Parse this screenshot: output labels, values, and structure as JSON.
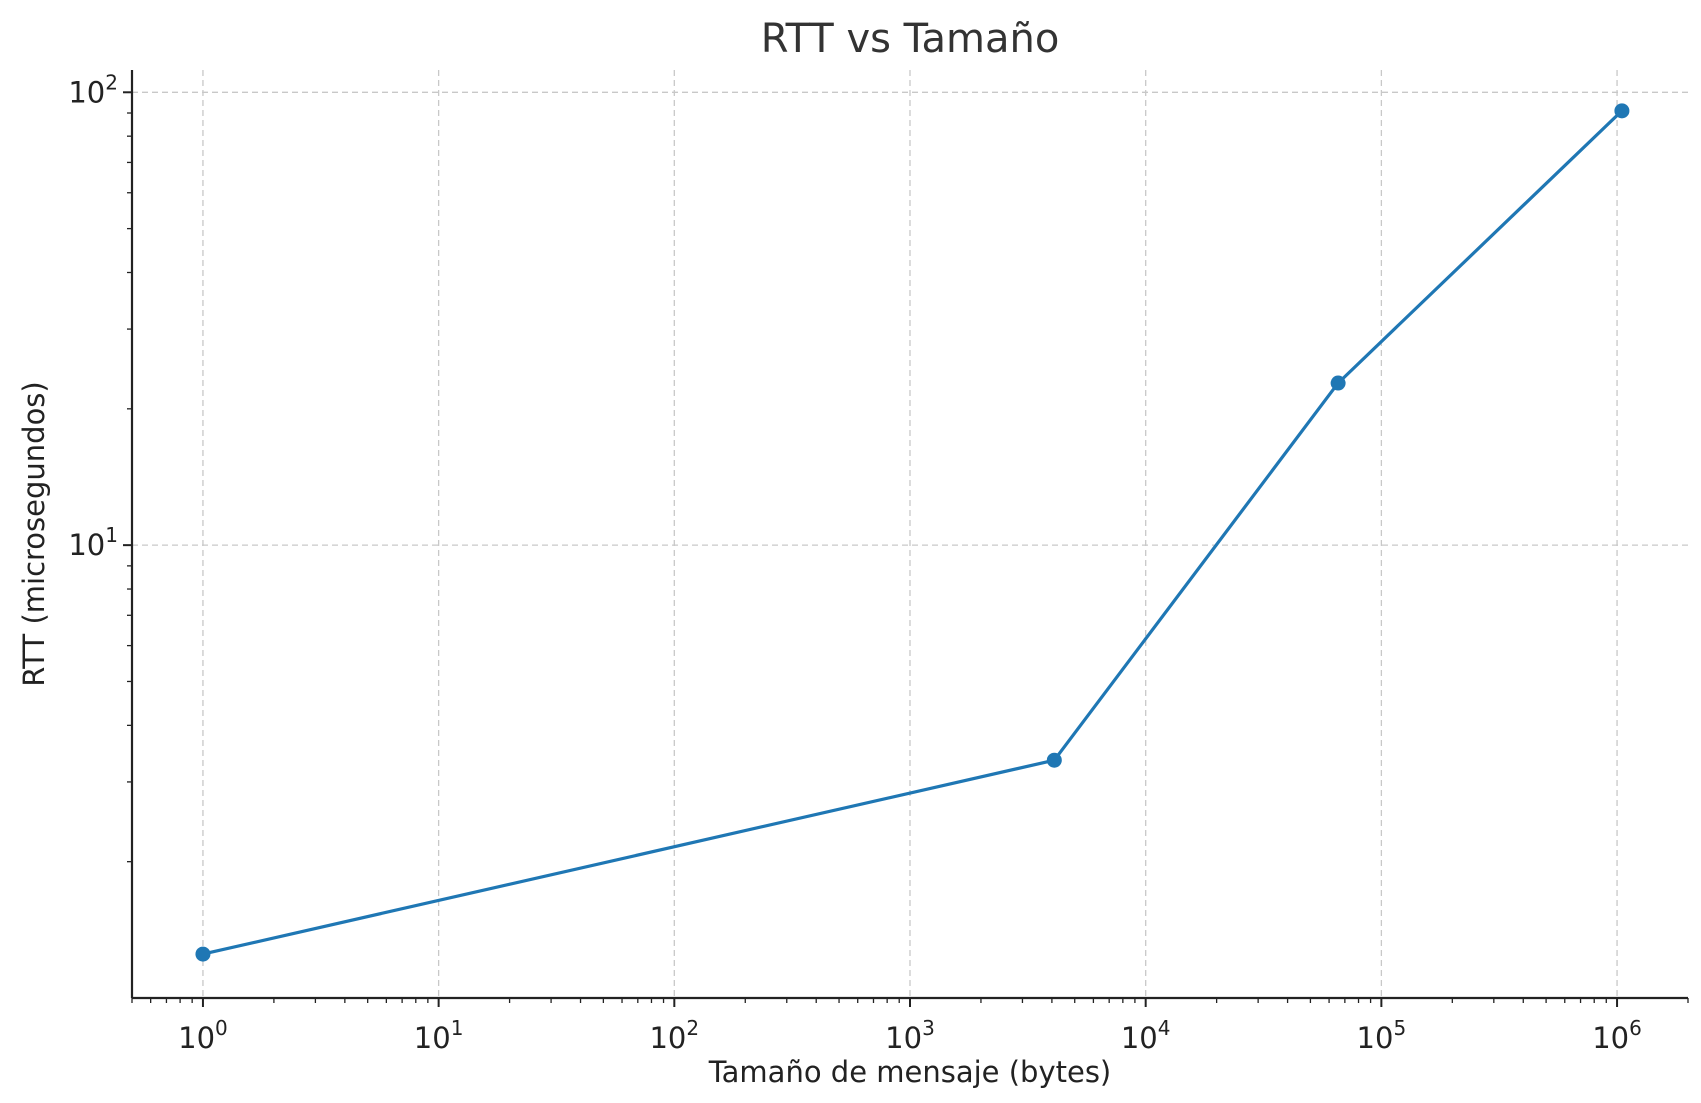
{
  "chart_data": {
    "type": "line",
    "title": "RTT vs Tamaño",
    "xlabel": "Tamaño de mensaje (bytes)",
    "ylabel": "RTT (microsegundos)",
    "xscale": "log",
    "yscale": "log",
    "xlim": [
      0.5,
      2000000
    ],
    "ylim": [
      1.0,
      112
    ],
    "grid": true,
    "x_ticks": [
      {
        "base": "10",
        "exp": "0",
        "value": 1
      },
      {
        "base": "10",
        "exp": "1",
        "value": 10
      },
      {
        "base": "10",
        "exp": "2",
        "value": 100
      },
      {
        "base": "10",
        "exp": "3",
        "value": 1000
      },
      {
        "base": "10",
        "exp": "4",
        "value": 10000
      },
      {
        "base": "10",
        "exp": "5",
        "value": 100000
      },
      {
        "base": "10",
        "exp": "6",
        "value": 1000000
      }
    ],
    "y_ticks": [
      {
        "base": "10",
        "exp": "1",
        "value": 10
      },
      {
        "base": "10",
        "exp": "2",
        "value": 100
      }
    ],
    "series": [
      {
        "color": "#1f77b4",
        "x": [
          1,
          4096,
          65536,
          1048576
        ],
        "y": [
          1.25,
          3.35,
          22.8,
          91
        ]
      }
    ]
  }
}
